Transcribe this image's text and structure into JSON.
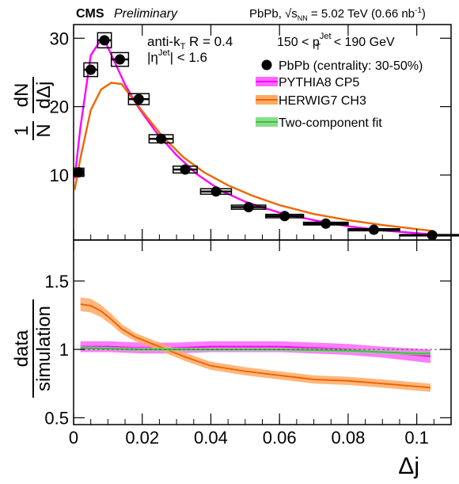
{
  "header": {
    "experiment": "CMS",
    "status": "Preliminary",
    "system_energy": "PbPb, √s",
    "energy_sub": "NN",
    "energy_value": " = 5.02 TeV (0.66 nb",
    "energy_sup": "-1",
    "energy_close": ")"
  },
  "annotations": {
    "algo_pre": "anti-k",
    "algo_sub": "T",
    "algo_post": " R = 0.4",
    "eta_pre": "|η",
    "eta_sup": "Jet",
    "eta_post": "| < 1.6",
    "pt_pre": "150 < p",
    "pt_sup": "Jet",
    "pt_sub": "T",
    "pt_post": " < 190 GeV"
  },
  "legend": [
    {
      "label": "PbPb (centrality: 30-50%)",
      "kind": "marker",
      "color": "#000000"
    },
    {
      "label": "PYTHIA8 CP5",
      "kind": "band",
      "color": "#ff00ff",
      "fill": "#ff66ff"
    },
    {
      "label": "HERWIG7 CH3",
      "kind": "band",
      "color": "#ee6600",
      "fill": "#ffaa66"
    },
    {
      "label": "Two-component fit",
      "kind": "band",
      "color": "#44bb44",
      "fill": "#88dd88"
    }
  ],
  "axes": {
    "x_label": "Δj",
    "top_y_label_num": "1",
    "top_y_label_n": "N",
    "top_y_label_dn": "dN",
    "top_y_label_dd": "dΔj",
    "bottom_y_label_num": "data",
    "bottom_y_label_den": "simulation"
  },
  "chart_data": [
    {
      "type": "scatter",
      "panel": "top",
      "title": "",
      "xlim": [
        0,
        0.11
      ],
      "ylim": [
        0.5,
        32
      ],
      "x_ticks": [
        0,
        0.02,
        0.04,
        0.06,
        0.08,
        0.1
      ],
      "x_tick_labels": [
        "0",
        "0.02",
        "0.04",
        "0.06",
        "0.08",
        "0.1"
      ],
      "y_ticks": [
        10,
        20,
        30
      ],
      "y_tick_labels": [
        "10",
        "20",
        "30"
      ],
      "grid": false,
      "legend_position": "top-right",
      "series": [
        {
          "name": "PbPb (centrality: 30-50%)",
          "type": "points",
          "x": [
            0.0015,
            0.005,
            0.009,
            0.0135,
            0.019,
            0.0255,
            0.0325,
            0.0415,
            0.051,
            0.0615,
            0.0735,
            0.0875,
            0.1045
          ],
          "xerr": [
            0.0015,
            0.002,
            0.002,
            0.0025,
            0.003,
            0.0035,
            0.0035,
            0.0045,
            0.005,
            0.0055,
            0.0065,
            0.0075,
            0.0095
          ],
          "y": [
            10.4,
            25.4,
            29.7,
            26.9,
            21.1,
            15.3,
            10.8,
            7.6,
            5.3,
            4.0,
            2.9,
            2.0,
            1.2
          ],
          "syst": [
            0.6,
            1.0,
            1.1,
            1.0,
            0.8,
            0.6,
            0.5,
            0.4,
            0.3,
            0.25,
            0.2,
            0.15,
            0.1
          ]
        },
        {
          "name": "PYTHIA8 CP5",
          "type": "line",
          "x": [
            0.0003,
            0.002,
            0.005,
            0.008,
            0.0095,
            0.012,
            0.015,
            0.019,
            0.024,
            0.03,
            0.036,
            0.043,
            0.05,
            0.06,
            0.07,
            0.08,
            0.09,
            0.1,
            0.105
          ],
          "y": [
            9.5,
            17.0,
            27.5,
            29.8,
            29.2,
            26.5,
            23.2,
            19.8,
            16.3,
            12.9,
            10.1,
            7.7,
            6.1,
            4.5,
            3.4,
            2.5,
            1.9,
            1.5,
            1.3
          ]
        },
        {
          "name": "HERWIG7 CH3",
          "type": "line",
          "x": [
            0.0003,
            0.002,
            0.005,
            0.008,
            0.011,
            0.014,
            0.017,
            0.021,
            0.026,
            0.032,
            0.038,
            0.045,
            0.052,
            0.06,
            0.07,
            0.08,
            0.09,
            0.1,
            0.105
          ],
          "y": [
            7.8,
            12.5,
            19.5,
            22.5,
            23.5,
            23.3,
            21.3,
            18.7,
            15.6,
            12.6,
            10.4,
            8.5,
            7.0,
            5.6,
            4.3,
            3.4,
            2.7,
            2.1,
            1.8
          ]
        }
      ]
    },
    {
      "type": "area",
      "panel": "bottom",
      "title": "",
      "xlim": [
        0,
        0.11
      ],
      "ylim": [
        0.45,
        1.8
      ],
      "x_ticks": [
        0,
        0.02,
        0.04,
        0.06,
        0.08,
        0.1
      ],
      "x_tick_labels": [
        "0",
        "0.02",
        "0.04",
        "0.06",
        "0.08",
        "0.1"
      ],
      "y_ticks": [
        0.5,
        1,
        1.5
      ],
      "y_tick_labels": [
        "0.5",
        "1",
        "1.5"
      ],
      "reference_line": 1.0,
      "grid": false,
      "series": [
        {
          "name": "PYTHIA8 CP5",
          "x": [
            0.002,
            0.01,
            0.02,
            0.03,
            0.04,
            0.05,
            0.06,
            0.07,
            0.08,
            0.09,
            0.104
          ],
          "y": [
            1.02,
            1.02,
            1.01,
            1.01,
            1.02,
            1.02,
            1.02,
            1.01,
            1.0,
            0.98,
            0.95
          ],
          "band": [
            0.04,
            0.04,
            0.04,
            0.04,
            0.04,
            0.04,
            0.04,
            0.04,
            0.04,
            0.04,
            0.05
          ]
        },
        {
          "name": "HERWIG7 CH3",
          "x": [
            0.002,
            0.005,
            0.008,
            0.011,
            0.014,
            0.018,
            0.022,
            0.027,
            0.033,
            0.04,
            0.05,
            0.06,
            0.07,
            0.08,
            0.09,
            0.104
          ],
          "y": [
            1.33,
            1.32,
            1.28,
            1.22,
            1.15,
            1.09,
            1.05,
            1.0,
            0.94,
            0.88,
            0.84,
            0.81,
            0.78,
            0.77,
            0.75,
            0.72
          ],
          "band": [
            0.05,
            0.05,
            0.045,
            0.04,
            0.035,
            0.03,
            0.03,
            0.03,
            0.03,
            0.03,
            0.03,
            0.03,
            0.03,
            0.03,
            0.03,
            0.03
          ]
        },
        {
          "name": "Two-component fit",
          "x": [
            0.002,
            0.02,
            0.04,
            0.06,
            0.08,
            0.1,
            0.104
          ],
          "y": [
            1.01,
            1.0,
            1.0,
            1.0,
            0.99,
            0.97,
            0.97
          ],
          "band": [
            0.012,
            0.012,
            0.012,
            0.012,
            0.012,
            0.012,
            0.012
          ]
        }
      ]
    }
  ]
}
